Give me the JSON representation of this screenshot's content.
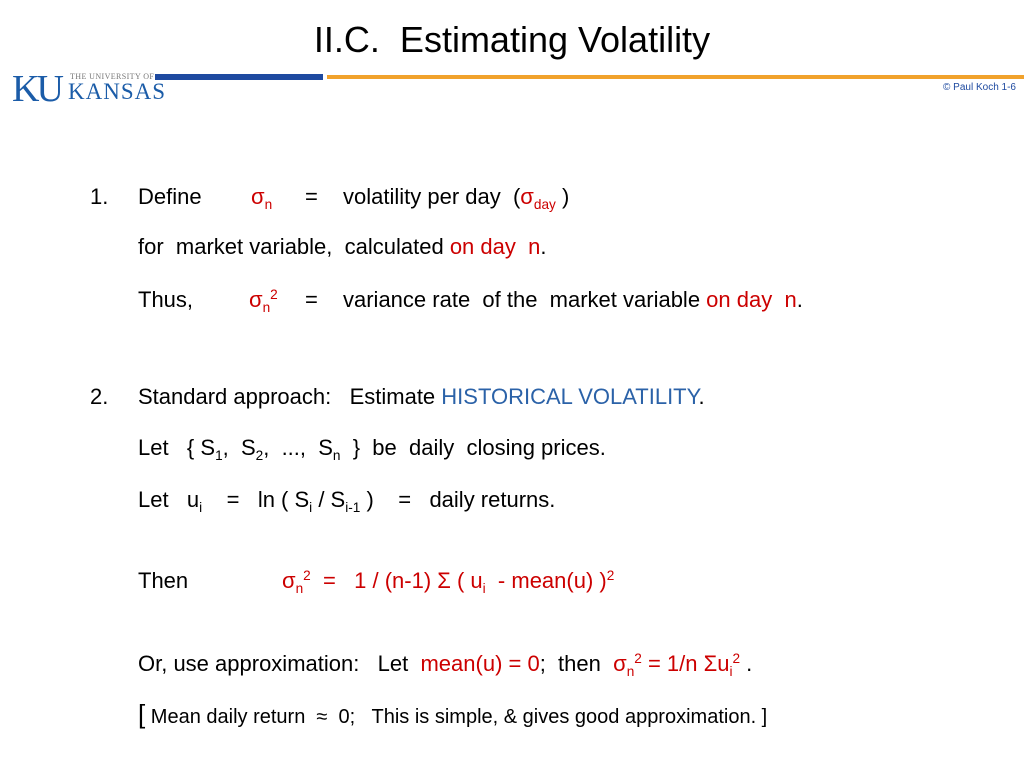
{
  "slide": {
    "title": "II.C.  Estimating Volatility",
    "copyright": "© Paul Koch 1-6"
  },
  "logo": {
    "ku": "KU",
    "subtitle": "THE UNIVERSITY OF",
    "name": "KANSAS"
  },
  "item1": {
    "number": "1.",
    "define": "Define",
    "sigma": "σ",
    "n_sub": "n",
    "equals": "=",
    "desc": "volatility per day  (",
    "sigma_day": "σ",
    "day_sub": "day",
    "close_paren": ")",
    "line2_text": "for  market variable,  calculated ",
    "line2_red": "on day  n",
    "line2_end": ".",
    "thus": "Thus,",
    "sigma2": "σ",
    "n2_sub": "n",
    "sq": "2",
    "equals2": "=",
    "line3_text": "variance rate  of the  market variable ",
    "line3_red": "on day  n",
    "line3_end": "."
  },
  "item2": {
    "number": "2.",
    "text": "Standard approach:   Estimate ",
    "highlight": "HISTORICAL VOLATILITY",
    "end": ".",
    "let1": "Let   { S",
    "s1": "1",
    "s2_pre": ",  S",
    "s2": "2",
    "mid": ",  ...,  S",
    "sn": "n",
    "let1_end": "  }  be  daily  closing prices.",
    "let2": "Let   u",
    "ui_sub": "i",
    "let2_eq": "    =   ln ( S",
    "si_sub": "i",
    "let2_div": " / S",
    "si1_sub": "i-1",
    "let2_end": " )    =   daily returns."
  },
  "then": {
    "label": "Then",
    "sigma": "σ",
    "n_sub": "n",
    "sq": "2",
    "formula": "  =   1 / (n-1) Σ ( u",
    "ui_sub": "i",
    "formula_end": "  - mean(u) )",
    "sq2": "2"
  },
  "approx": {
    "text": "Or, use approximation:   Let  ",
    "red1": "mean(u) = 0",
    "mid": ";  then  ",
    "sigma": "σ",
    "n_sub": "n",
    "sq": "2",
    "formula": " = 1/n Σu",
    "ui_sub": "i",
    "sq2": "2",
    "end": " .",
    "bracket_open": "[",
    "note": " Mean daily return  ≈  0;   This is simple, & gives good approximation. ]"
  }
}
